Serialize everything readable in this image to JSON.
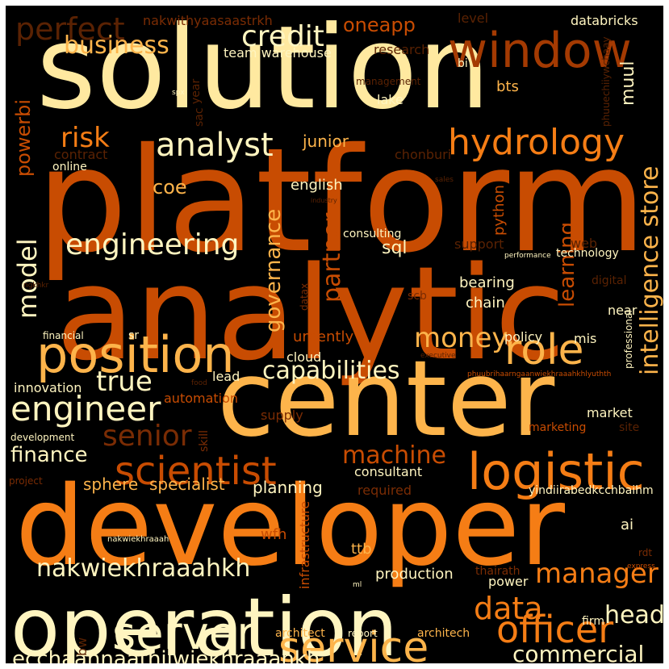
{
  "palette": {
    "pale": "#fff5c0",
    "light": "#ffe9a0",
    "yellow": "#fdb44b",
    "orange": "#f57d15",
    "dark": "#c84c02",
    "brown": "#a43a02",
    "deep": "#7a2c04",
    "darker": "#5a2203",
    "background": "#000000",
    "frame": "#ffffff"
  },
  "words": [
    {
      "text": "solution",
      "color": "light"
    },
    {
      "text": "platform",
      "color": "dark"
    },
    {
      "text": "analytic",
      "color": "dark"
    },
    {
      "text": "center",
      "color": "yellow"
    },
    {
      "text": "developer",
      "color": "orange"
    },
    {
      "text": "operation",
      "color": "pale"
    },
    {
      "text": "window",
      "color": "brown"
    },
    {
      "text": "position",
      "color": "yellow"
    },
    {
      "text": "logistic",
      "color": "orange"
    },
    {
      "text": "hydrology",
      "color": "orange"
    },
    {
      "text": "role",
      "color": "yellow"
    },
    {
      "text": "service",
      "color": "yellow"
    },
    {
      "text": "server",
      "color": "pale"
    },
    {
      "text": "officer",
      "color": "orange"
    },
    {
      "text": "scientist",
      "color": "dark"
    },
    {
      "text": "engineer",
      "color": "pale"
    },
    {
      "text": "analyst",
      "color": "pale"
    },
    {
      "text": "engineering",
      "color": "pale"
    },
    {
      "text": "credit",
      "color": "pale"
    },
    {
      "text": "perfect",
      "color": "darker"
    },
    {
      "text": "business",
      "color": "yellow"
    },
    {
      "text": "risk",
      "color": "orange"
    },
    {
      "text": "money",
      "color": "yellow"
    },
    {
      "text": "true",
      "color": "pale"
    },
    {
      "text": "data",
      "color": "orange"
    },
    {
      "text": "manager",
      "color": "orange"
    },
    {
      "text": "senior",
      "color": "deep"
    },
    {
      "text": "machine",
      "color": "dark"
    },
    {
      "text": "capabilities",
      "color": "pale"
    },
    {
      "text": "intelligence store",
      "color": "yellow"
    },
    {
      "text": "nakwiekhraaahkh",
      "color": "pale"
    },
    {
      "text": "ecchaahnaathiiwiekhraaahkh",
      "color": "pale"
    },
    {
      "text": "commercial",
      "color": "pale"
    },
    {
      "text": "head",
      "color": "pale"
    },
    {
      "text": "finance",
      "color": "pale"
    },
    {
      "text": "sphere",
      "color": "yellow"
    },
    {
      "text": "specialist",
      "color": "yellow"
    },
    {
      "text": "planning",
      "color": "pale"
    },
    {
      "text": "model",
      "color": "pale"
    },
    {
      "text": "governance",
      "color": "yellow"
    },
    {
      "text": "partner",
      "color": "dark"
    },
    {
      "text": "learning",
      "color": "dark"
    },
    {
      "text": "sql",
      "color": "pale"
    },
    {
      "text": "coe",
      "color": "yellow"
    },
    {
      "text": "junior",
      "color": "yellow"
    },
    {
      "text": "english",
      "color": "pale"
    },
    {
      "text": "python",
      "color": "dark"
    },
    {
      "text": "powerbi",
      "color": "dark"
    },
    {
      "text": "contract",
      "color": "darker"
    },
    {
      "text": "online",
      "color": "pale"
    },
    {
      "text": "oneapp",
      "color": "dark"
    },
    {
      "text": "nakwithyaasaastrkh",
      "color": "deep"
    },
    {
      "text": "team warehouse",
      "color": "pale"
    },
    {
      "text": "research",
      "color": "darker"
    },
    {
      "text": "level",
      "color": "darker"
    },
    {
      "text": "databricks",
      "color": "pale"
    },
    {
      "text": "bi",
      "color": "pale"
    },
    {
      "text": "muul",
      "color": "pale"
    },
    {
      "text": "management",
      "color": "darker"
    },
    {
      "text": "bts",
      "color": "yellow"
    },
    {
      "text": "lake",
      "color": "pale"
    },
    {
      "text": "year",
      "color": "darker"
    },
    {
      "text": "sac",
      "color": "darker"
    },
    {
      "text": "spx",
      "color": "pale"
    },
    {
      "text": "phuuechiiywchaay",
      "color": "darker"
    },
    {
      "text": "chonburi",
      "color": "darker"
    },
    {
      "text": "sales",
      "color": "darker"
    },
    {
      "text": "industry",
      "color": "darker"
    },
    {
      "text": "consulting",
      "color": "pale"
    },
    {
      "text": "support",
      "color": "darker"
    },
    {
      "text": "web",
      "color": "darker"
    },
    {
      "text": "performance",
      "color": "pale"
    },
    {
      "text": "technology",
      "color": "pale"
    },
    {
      "text": "digital",
      "color": "darker"
    },
    {
      "text": "datax",
      "color": "deep"
    },
    {
      "text": "scb",
      "color": "deep"
    },
    {
      "text": "bearing",
      "color": "pale"
    },
    {
      "text": "chain",
      "color": "pale"
    },
    {
      "text": "near",
      "color": "pale"
    },
    {
      "text": "professional",
      "color": "pale"
    },
    {
      "text": "ngkhkr",
      "color": "darker"
    },
    {
      "text": "financial",
      "color": "pale"
    },
    {
      "text": "sr",
      "color": "pale"
    },
    {
      "text": "urgently",
      "color": "dark"
    },
    {
      "text": "cloud",
      "color": "pale"
    },
    {
      "text": "policy",
      "color": "pale"
    },
    {
      "text": "mis",
      "color": "pale"
    },
    {
      "text": "executive",
      "color": "darker"
    },
    {
      "text": "phuubrihaarngaanwiekhraaahkhlyuthth",
      "color": "dark"
    },
    {
      "text": "innovation",
      "color": "pale"
    },
    {
      "text": "lead",
      "color": "pale"
    },
    {
      "text": "food",
      "color": "darker"
    },
    {
      "text": "automation",
      "color": "dark"
    },
    {
      "text": "market",
      "color": "pale"
    },
    {
      "text": "supply",
      "color": "deep"
    },
    {
      "text": "development",
      "color": "pale"
    },
    {
      "text": "skill",
      "color": "deep"
    },
    {
      "text": "marketing",
      "color": "dark"
    },
    {
      "text": "site",
      "color": "darker"
    },
    {
      "text": "consultant",
      "color": "pale"
    },
    {
      "text": "required",
      "color": "deep"
    },
    {
      "text": "yindiirabedkcchbaihm",
      "color": "pale"
    },
    {
      "text": "project",
      "color": "deep"
    },
    {
      "text": "ai",
      "color": "pale"
    },
    {
      "text": "wfh",
      "color": "dark"
    },
    {
      "text": "ttb",
      "color": "yellow"
    },
    {
      "text": "infrastructure",
      "color": "dark"
    },
    {
      "text": "nakwiekhraaah",
      "color": "pale"
    },
    {
      "text": "rdt",
      "color": "deep"
    },
    {
      "text": "production",
      "color": "pale"
    },
    {
      "text": "power",
      "color": "pale"
    },
    {
      "text": "thairath",
      "color": "deep"
    },
    {
      "text": "express",
      "color": "dark"
    },
    {
      "text": "ml",
      "color": "pale"
    },
    {
      "text": "firm",
      "color": "pale"
    },
    {
      "text": "bw",
      "color": "darker"
    },
    {
      "text": "architect",
      "color": "yellow"
    },
    {
      "text": "report",
      "color": "pale"
    },
    {
      "text": "architech",
      "color": "yellow"
    }
  ]
}
